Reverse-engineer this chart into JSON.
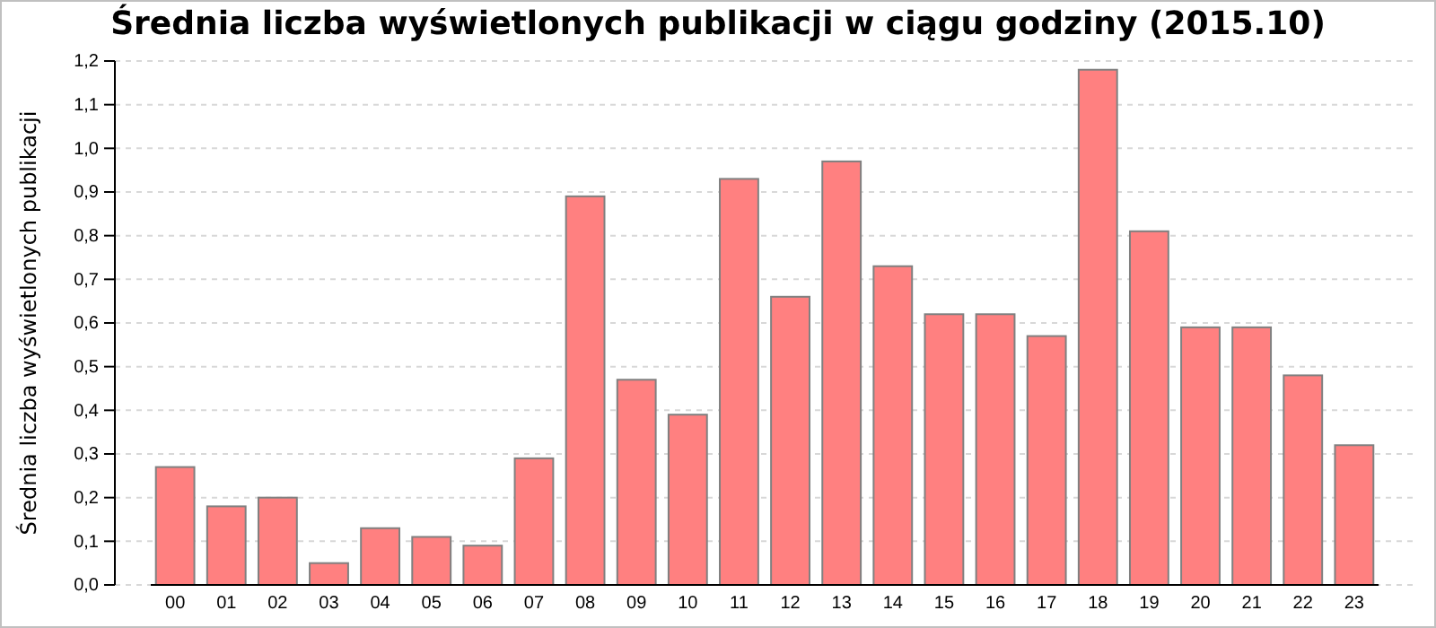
{
  "chart_data": {
    "type": "bar",
    "title": "Średnia liczba wyświetlonych publikacji w ciągu godziny (2015.10)",
    "ylabel": "Średnia liczba wyświetlonych publikacji",
    "categories": [
      "00",
      "01",
      "02",
      "03",
      "04",
      "05",
      "06",
      "07",
      "08",
      "09",
      "10",
      "11",
      "12",
      "13",
      "14",
      "15",
      "16",
      "17",
      "18",
      "19",
      "20",
      "21",
      "22",
      "23"
    ],
    "values": [
      0.27,
      0.18,
      0.2,
      0.05,
      0.13,
      0.11,
      0.09,
      0.29,
      0.89,
      0.47,
      0.39,
      0.93,
      0.66,
      0.97,
      0.73,
      0.62,
      0.62,
      0.57,
      1.18,
      0.81,
      0.59,
      0.59,
      0.48,
      0.32
    ],
    "color": "#ff8080",
    "ylim": [
      0,
      1.2
    ],
    "yticks": [
      {
        "value": 0,
        "label": "0,0"
      },
      {
        "value": 0.1,
        "label": "0,1"
      },
      {
        "value": 0.2,
        "label": "0,2"
      },
      {
        "value": 0.3,
        "label": "0,3"
      },
      {
        "value": 0.4,
        "label": "0,4"
      },
      {
        "value": 0.5,
        "label": "0,5"
      },
      {
        "value": 0.6,
        "label": "0,6"
      },
      {
        "value": 0.7,
        "label": "0,7"
      },
      {
        "value": 0.8,
        "label": "0,8"
      },
      {
        "value": 0.9,
        "label": "0,9"
      },
      {
        "value": 1.0,
        "label": "1,0"
      },
      {
        "value": 1.1,
        "label": "1,1"
      },
      {
        "value": 1.2,
        "label": "1,2"
      }
    ],
    "grid": "y"
  }
}
